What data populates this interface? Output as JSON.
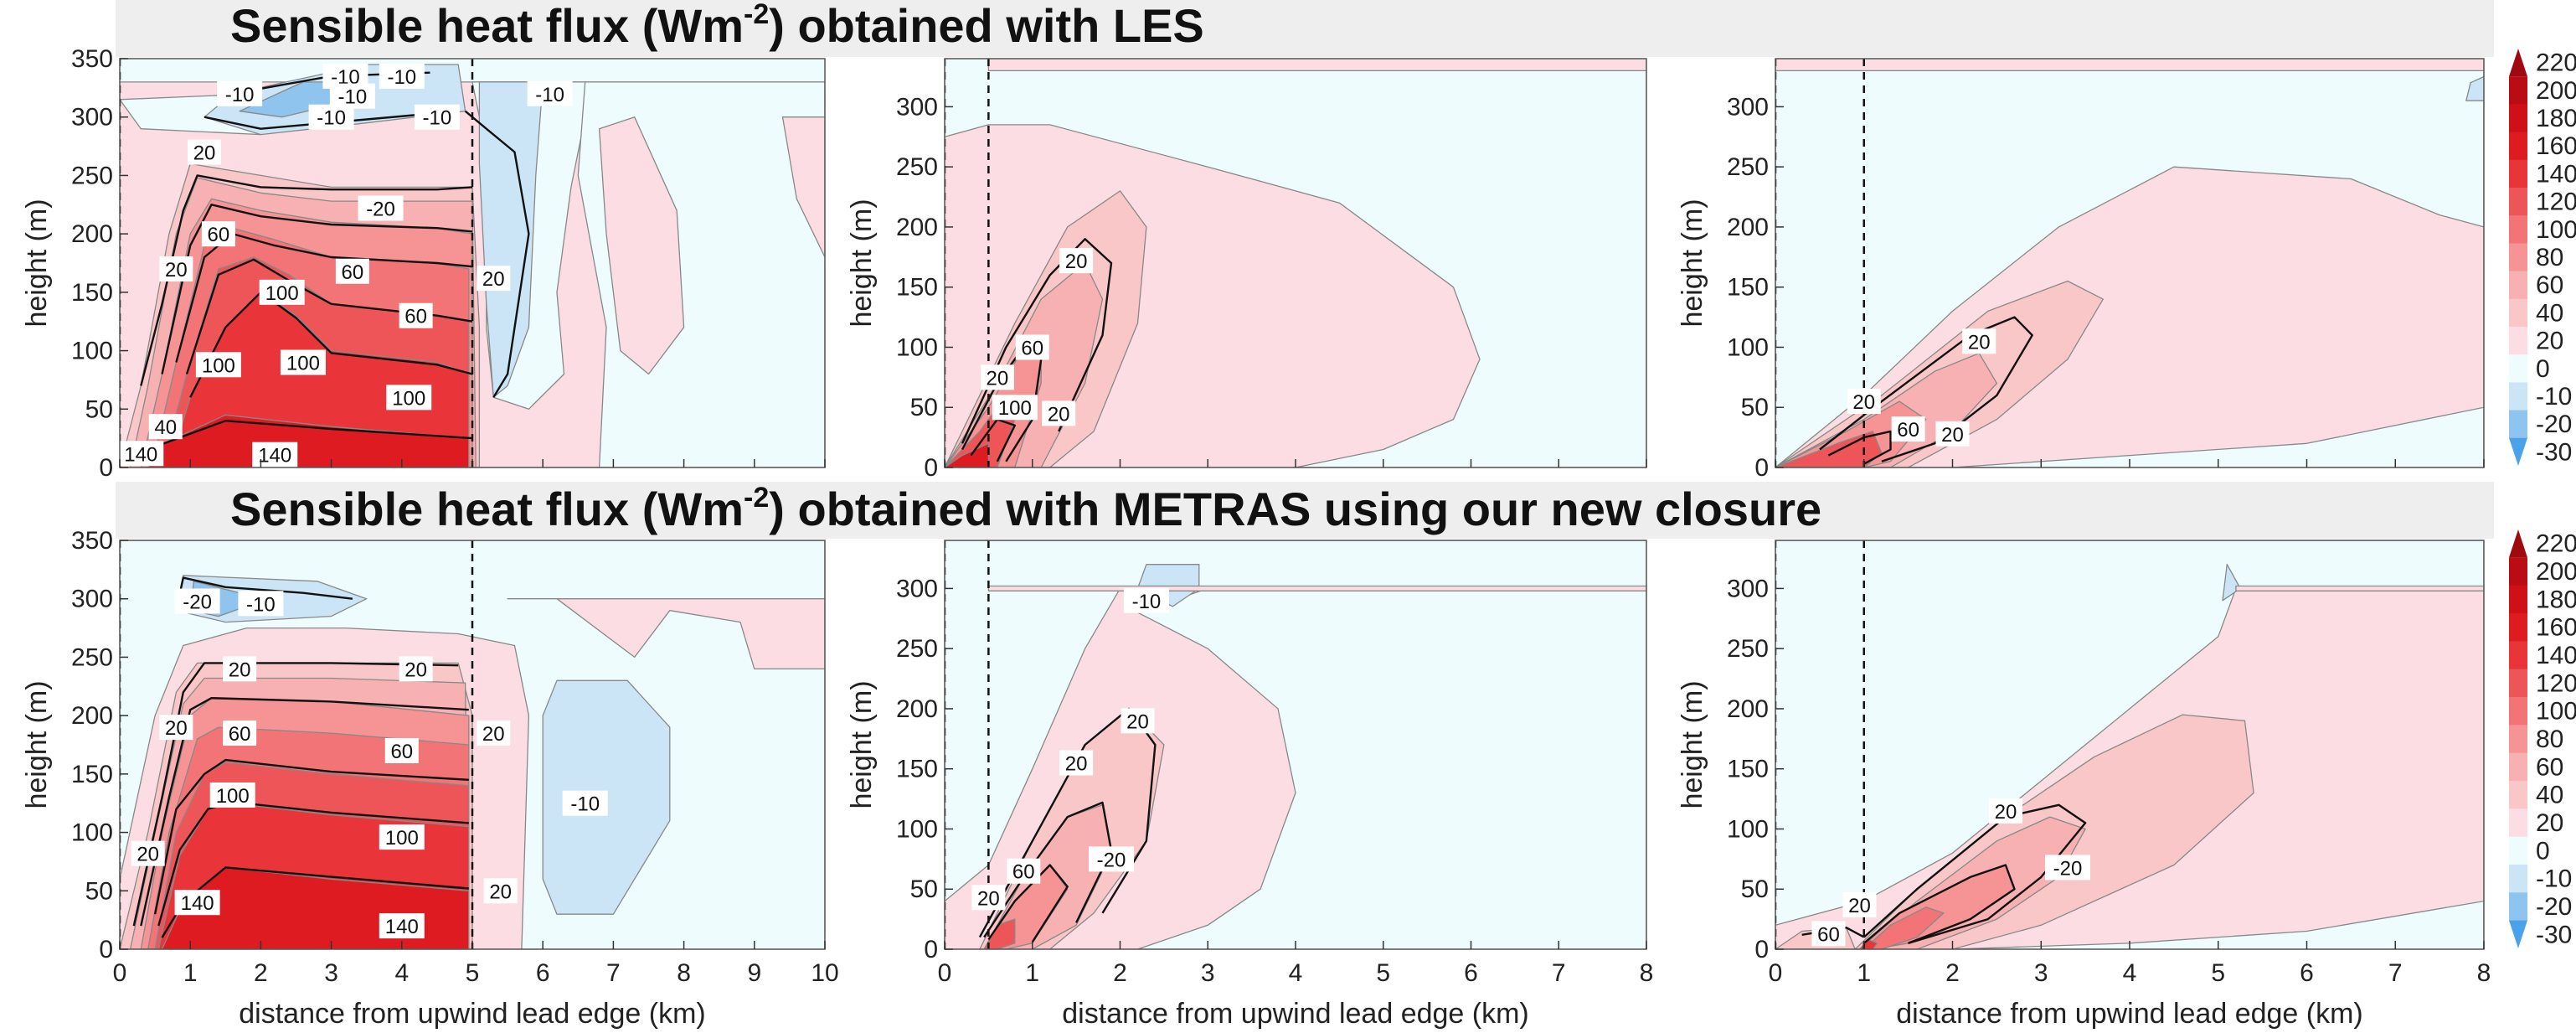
{
  "banners": {
    "top": {
      "pre": "Sensible heat flux (Wm",
      "sup": "-2",
      "post": ") obtained with LES"
    },
    "bottom": {
      "pre": "Sensible heat flux (Wm",
      "sup": "-2",
      "post": ") obtained with METRAS using our new closure"
    }
  },
  "chart_data": [
    {
      "type": "heatmap",
      "row": "LES",
      "title": "",
      "xlabel": "",
      "ylabel": "height (m)",
      "xlim": [
        0,
        10
      ],
      "ylim": [
        0,
        350
      ],
      "lead_edges_km": [
        0,
        5
      ],
      "grid": false,
      "contour_labels": [
        {
          "x": 0.3,
          "y": 12,
          "text": "140"
        },
        {
          "x": 0.65,
          "y": 35,
          "text": "40"
        },
        {
          "x": 1.2,
          "y": 270,
          "text": "20"
        },
        {
          "x": 0.8,
          "y": 170,
          "text": "20"
        },
        {
          "x": 1.4,
          "y": 200,
          "text": "60"
        },
        {
          "x": 3.3,
          "y": 168,
          "text": "60"
        },
        {
          "x": 2.3,
          "y": 150,
          "text": "100"
        },
        {
          "x": 1.4,
          "y": 88,
          "text": "100"
        },
        {
          "x": 2.6,
          "y": 90,
          "text": "100"
        },
        {
          "x": 4.1,
          "y": 60,
          "text": "100"
        },
        {
          "x": 4.2,
          "y": 130,
          "text": "60"
        },
        {
          "x": 2.2,
          "y": 11,
          "text": "140"
        },
        {
          "x": 3.7,
          "y": 222,
          "text": "-20"
        },
        {
          "x": 5.3,
          "y": 162,
          "text": "20"
        },
        {
          "x": 1.7,
          "y": 320,
          "text": "-10"
        },
        {
          "x": 3.2,
          "y": 335,
          "text": "-10"
        },
        {
          "x": 4.0,
          "y": 335,
          "text": "-10"
        },
        {
          "x": 3.3,
          "y": 318,
          "text": "-10"
        },
        {
          "x": 3.0,
          "y": 300,
          "text": "-10"
        },
        {
          "x": 4.5,
          "y": 300,
          "text": "-10"
        },
        {
          "x": 6.1,
          "y": 320,
          "text": "-10"
        }
      ]
    },
    {
      "type": "heatmap",
      "row": "LES",
      "title": "",
      "xlabel": "",
      "ylabel": "height (m)",
      "xlim": [
        0,
        8
      ],
      "ylim": [
        0,
        340
      ],
      "lead_edges_km": [
        0,
        0.5
      ],
      "grid": false,
      "contour_labels": [
        {
          "x": 1.5,
          "y": 172,
          "text": "20"
        },
        {
          "x": 0.6,
          "y": 75,
          "text": "20"
        },
        {
          "x": 1.0,
          "y": 100,
          "text": "60"
        },
        {
          "x": 0.8,
          "y": 50,
          "text": "100"
        },
        {
          "x": 1.3,
          "y": 45,
          "text": "20"
        }
      ]
    },
    {
      "type": "heatmap",
      "row": "LES",
      "title": "",
      "xlabel": "",
      "ylabel": "height (m)",
      "xlim": [
        0,
        8
      ],
      "ylim": [
        0,
        340
      ],
      "lead_edges_km": [
        0,
        1
      ],
      "grid": false,
      "contour_labels": [
        {
          "x": 2.3,
          "y": 105,
          "text": "20"
        },
        {
          "x": 1.0,
          "y": 55,
          "text": "20"
        },
        {
          "x": 1.5,
          "y": 32,
          "text": "60"
        },
        {
          "x": 2.0,
          "y": 28,
          "text": "20"
        }
      ]
    },
    {
      "type": "heatmap",
      "row": "METRAS",
      "title": "",
      "xlabel": "distance from upwind lead edge (km)",
      "ylabel": "height (m)",
      "xlim": [
        0,
        10
      ],
      "ylim": [
        0,
        350
      ],
      "lead_edges_km": [
        0,
        5
      ],
      "grid": false,
      "contour_labels": [
        {
          "x": 1.1,
          "y": 298,
          "text": "-20"
        },
        {
          "x": 2.0,
          "y": 296,
          "text": "-10"
        },
        {
          "x": 1.7,
          "y": 240,
          "text": "20"
        },
        {
          "x": 4.2,
          "y": 240,
          "text": "20"
        },
        {
          "x": 0.8,
          "y": 190,
          "text": "20"
        },
        {
          "x": 1.7,
          "y": 185,
          "text": "60"
        },
        {
          "x": 4.0,
          "y": 170,
          "text": "60"
        },
        {
          "x": 1.6,
          "y": 132,
          "text": "100"
        },
        {
          "x": 4.0,
          "y": 96,
          "text": "100"
        },
        {
          "x": 5.3,
          "y": 185,
          "text": "20"
        },
        {
          "x": 0.4,
          "y": 82,
          "text": "20"
        },
        {
          "x": 1.1,
          "y": 40,
          "text": "140"
        },
        {
          "x": 4.0,
          "y": 20,
          "text": "140"
        },
        {
          "x": 6.6,
          "y": 125,
          "text": "-10"
        },
        {
          "x": 5.4,
          "y": 50,
          "text": "20"
        }
      ]
    },
    {
      "type": "heatmap",
      "row": "METRAS",
      "title": "",
      "xlabel": "distance from upwind lead edge (km)",
      "ylabel": "height (m)",
      "xlim": [
        0,
        8
      ],
      "ylim": [
        0,
        340
      ],
      "lead_edges_km": [
        0,
        0.5
      ],
      "grid": false,
      "contour_labels": [
        {
          "x": 2.3,
          "y": 290,
          "text": "-10"
        },
        {
          "x": 2.2,
          "y": 190,
          "text": "20"
        },
        {
          "x": 1.5,
          "y": 155,
          "text": "20"
        },
        {
          "x": 1.9,
          "y": 75,
          "text": "-20"
        },
        {
          "x": 0.9,
          "y": 65,
          "text": "60"
        },
        {
          "x": 0.5,
          "y": 43,
          "text": "20"
        }
      ]
    },
    {
      "type": "heatmap",
      "row": "METRAS",
      "title": "",
      "xlabel": "distance from upwind lead edge (km)",
      "ylabel": "height (m)",
      "xlim": [
        0,
        8
      ],
      "ylim": [
        0,
        340
      ],
      "lead_edges_km": [
        0,
        1
      ],
      "grid": false,
      "contour_labels": [
        {
          "x": 2.6,
          "y": 115,
          "text": "20"
        },
        {
          "x": 3.3,
          "y": 68,
          "text": "-20"
        },
        {
          "x": 0.95,
          "y": 37,
          "text": "20"
        },
        {
          "x": 0.6,
          "y": 13,
          "text": "60"
        }
      ]
    }
  ],
  "colorbar": {
    "ticks": [
      "220",
      "200",
      "180",
      "160",
      "140",
      "120",
      "100",
      "80",
      "60",
      "40",
      "20",
      "0",
      "-10",
      "-20",
      "-30"
    ],
    "colors": [
      "#9e0a10",
      "#b90c15",
      "#cf1019",
      "#df1b22",
      "#e9343a",
      "#ee5558",
      "#f27476",
      "#f59395",
      "#f8b1b2",
      "#fac7c8",
      "#fcdde3",
      "#eefcfd",
      "#cbe5f7",
      "#8fc4ee",
      "#4aa3ea"
    ]
  },
  "style": {
    "background_sea": "#eefcfd",
    "banner_bg": "#eeeeee"
  }
}
